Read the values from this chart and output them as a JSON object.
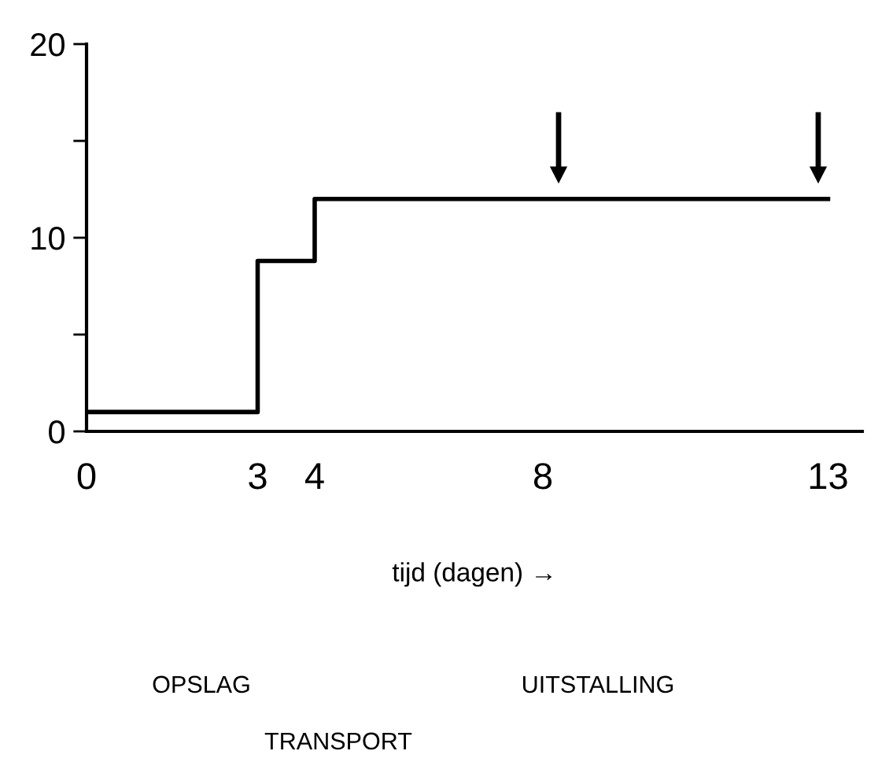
{
  "chart_data": {
    "type": "step",
    "x": [
      0,
      3,
      4,
      13
    ],
    "values": [
      1,
      8.8,
      12,
      12
    ],
    "color": "#000000",
    "xlim": [
      0,
      13.6
    ],
    "xticks": [
      0,
      3,
      4,
      8,
      13
    ],
    "ylim": [
      0,
      20
    ],
    "yticks": [
      0,
      {
        "value": 5,
        "label": null
      },
      10,
      {
        "value": 15,
        "label": null
      },
      20
    ],
    "xlabel": "tijd (dagen) →",
    "grid": false,
    "annotations": [
      "OPSLAG",
      "UITSTALLING",
      "TRANSPORT"
    ]
  }
}
